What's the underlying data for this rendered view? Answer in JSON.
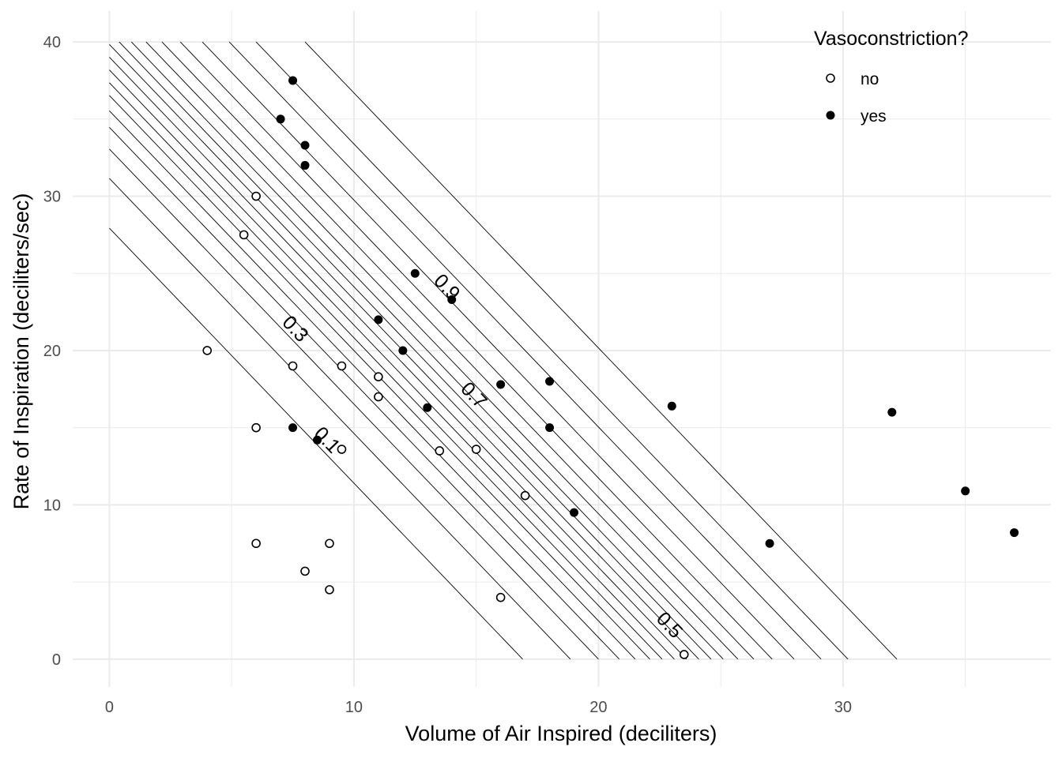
{
  "chart_data": {
    "type": "scatter",
    "xlabel": "Volume of Air Inspired (deciliters)",
    "ylabel": "Rate of Inspiration (deciliters/sec)",
    "xlim": [
      -1.5,
      38.5
    ],
    "ylim": [
      -1.8,
      42
    ],
    "x_ticks": [
      0,
      10,
      20,
      30
    ],
    "y_ticks": [
      0,
      10,
      20,
      30,
      40
    ],
    "legend": {
      "title": "Vasoconstriction?",
      "position": "top-right",
      "entries": [
        {
          "label": "no",
          "filled": false
        },
        {
          "label": "yes",
          "filled": true
        }
      ]
    },
    "series": [
      {
        "name": "no",
        "filled": false,
        "points": [
          [
            4,
            20
          ],
          [
            6,
            30
          ],
          [
            5.5,
            27.5
          ],
          [
            7.5,
            19
          ],
          [
            9.5,
            19
          ],
          [
            11,
            18.3
          ],
          [
            11,
            17
          ],
          [
            6,
            15
          ],
          [
            9.5,
            13.6
          ],
          [
            13.5,
            13.5
          ],
          [
            15,
            13.6
          ],
          [
            17,
            10.6
          ],
          [
            6,
            7.5
          ],
          [
            9,
            7.5
          ],
          [
            8,
            5.7
          ],
          [
            9,
            4.5
          ],
          [
            16,
            4
          ],
          [
            23.5,
            0.3
          ]
        ]
      },
      {
        "name": "yes",
        "filled": true,
        "points": [
          [
            7.5,
            37.5
          ],
          [
            7,
            35
          ],
          [
            8,
            33.3
          ],
          [
            8,
            32
          ],
          [
            12.5,
            25
          ],
          [
            14,
            23.3
          ],
          [
            11,
            22
          ],
          [
            12,
            20
          ],
          [
            16,
            17.8
          ],
          [
            18,
            18
          ],
          [
            13,
            16.3
          ],
          [
            18,
            15
          ],
          [
            7.5,
            15
          ],
          [
            8.5,
            14.2
          ],
          [
            19,
            9.5
          ],
          [
            23,
            16.4
          ],
          [
            27,
            7.5
          ],
          [
            32,
            16
          ],
          [
            35,
            10.9
          ],
          [
            37,
            8.2
          ]
        ]
      }
    ],
    "contours": {
      "description": "Fitted probability contour lines",
      "levels": [
        {
          "level": 0.05,
          "x_at_y0": 16.9,
          "x_at_y40": -7.3
        },
        {
          "level": 0.1,
          "x_at_y0": 18.85,
          "x_at_y40": -5.35
        },
        {
          "level": 0.15,
          "x_at_y0": 20.0,
          "x_at_y40": -4.2
        },
        {
          "level": 0.2,
          "x_at_y0": 20.85,
          "x_at_y40": -3.35
        },
        {
          "level": 0.25,
          "x_at_y0": 21.5,
          "x_at_y40": -2.7
        },
        {
          "level": 0.3,
          "x_at_y0": 22.1,
          "x_at_y40": -2.1
        },
        {
          "level": 0.35,
          "x_at_y0": 22.6,
          "x_at_y40": -1.6
        },
        {
          "level": 0.4,
          "x_at_y0": 23.1,
          "x_at_y40": -1.1
        },
        {
          "level": 0.45,
          "x_at_y0": 23.6,
          "x_at_y40": -0.6
        },
        {
          "level": 0.5,
          "x_at_y0": 24.1,
          "x_at_y40": -0.1
        },
        {
          "level": 0.55,
          "x_at_y0": 24.6,
          "x_at_y40": 0.4
        },
        {
          "level": 0.6,
          "x_at_y0": 25.1,
          "x_at_y40": 0.9
        },
        {
          "level": 0.65,
          "x_at_y0": 25.7,
          "x_at_y40": 1.5
        },
        {
          "level": 0.7,
          "x_at_y0": 26.35,
          "x_at_y40": 2.15
        },
        {
          "level": 0.75,
          "x_at_y0": 27.1,
          "x_at_y40": 2.9
        },
        {
          "level": 0.8,
          "x_at_y0": 28.0,
          "x_at_y40": 3.8
        },
        {
          "level": 0.85,
          "x_at_y0": 29.1,
          "x_at_y40": 4.9
        },
        {
          "level": 0.9,
          "x_at_y0": 30.2,
          "x_at_y40": 6.0
        },
        {
          "level": 0.95,
          "x_at_y0": 32.2,
          "x_at_y40": 8.0
        }
      ],
      "labels": [
        {
          "text": "0.1",
          "x": 8.9,
          "y": 14.2
        },
        {
          "text": "0.3",
          "x": 7.6,
          "y": 21.4
        },
        {
          "text": "0.5",
          "x": 22.9,
          "y": 2.2
        },
        {
          "text": "0.7",
          "x": 14.9,
          "y": 17.1
        },
        {
          "text": "0.9",
          "x": 13.8,
          "y": 24.1
        }
      ]
    }
  }
}
